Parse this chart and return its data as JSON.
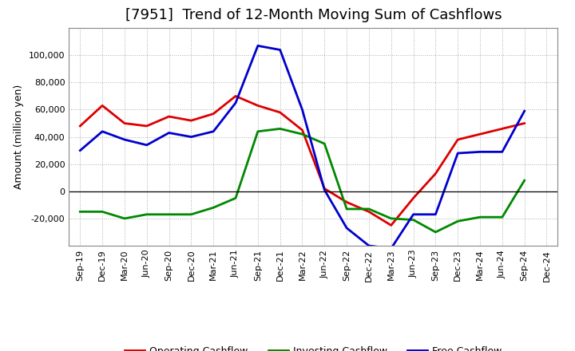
{
  "title": "[7951]  Trend of 12-Month Moving Sum of Cashflows",
  "ylabel": "Amount (million yen)",
  "xlabels": [
    "Sep-19",
    "Dec-19",
    "Mar-20",
    "Jun-20",
    "Sep-20",
    "Dec-20",
    "Mar-21",
    "Jun-21",
    "Sep-21",
    "Dec-21",
    "Mar-22",
    "Jun-22",
    "Sep-22",
    "Dec-22",
    "Mar-23",
    "Jun-23",
    "Sep-23",
    "Dec-23",
    "Mar-24",
    "Jun-24",
    "Sep-24",
    "Dec-24"
  ],
  "operating": [
    48000,
    63000,
    50000,
    48000,
    55000,
    52000,
    57000,
    70000,
    63000,
    58000,
    45000,
    2000,
    -8000,
    -15000,
    -25000,
    -5000,
    13000,
    38000,
    42000,
    46000,
    50000,
    null
  ],
  "investing": [
    -15000,
    -15000,
    -20000,
    -17000,
    -17000,
    -17000,
    -12000,
    -5000,
    44000,
    46000,
    42000,
    35000,
    -13000,
    -13000,
    -20000,
    -21000,
    -30000,
    -22000,
    -19000,
    -19000,
    8000,
    null
  ],
  "free": [
    30000,
    44000,
    38000,
    34000,
    43000,
    40000,
    44000,
    65000,
    107000,
    104000,
    60000,
    1000,
    -27000,
    -40000,
    -42000,
    -17000,
    -17000,
    28000,
    29000,
    29000,
    59000,
    null
  ],
  "operating_color": "#dd0000",
  "investing_color": "#008800",
  "free_color": "#0000cc",
  "bg_color": "#ffffff",
  "plot_bg_color": "#ffffff",
  "grid_color": "#999999",
  "ylim": [
    -40000,
    120000
  ],
  "yticks": [
    -20000,
    0,
    20000,
    40000,
    60000,
    80000,
    100000
  ],
  "legend_labels": [
    "Operating Cashflow",
    "Investing Cashflow",
    "Free Cashflow"
  ],
  "title_fontsize": 13,
  "tick_fontsize": 8,
  "ylabel_fontsize": 9,
  "legend_fontsize": 9,
  "linewidth": 2.0
}
